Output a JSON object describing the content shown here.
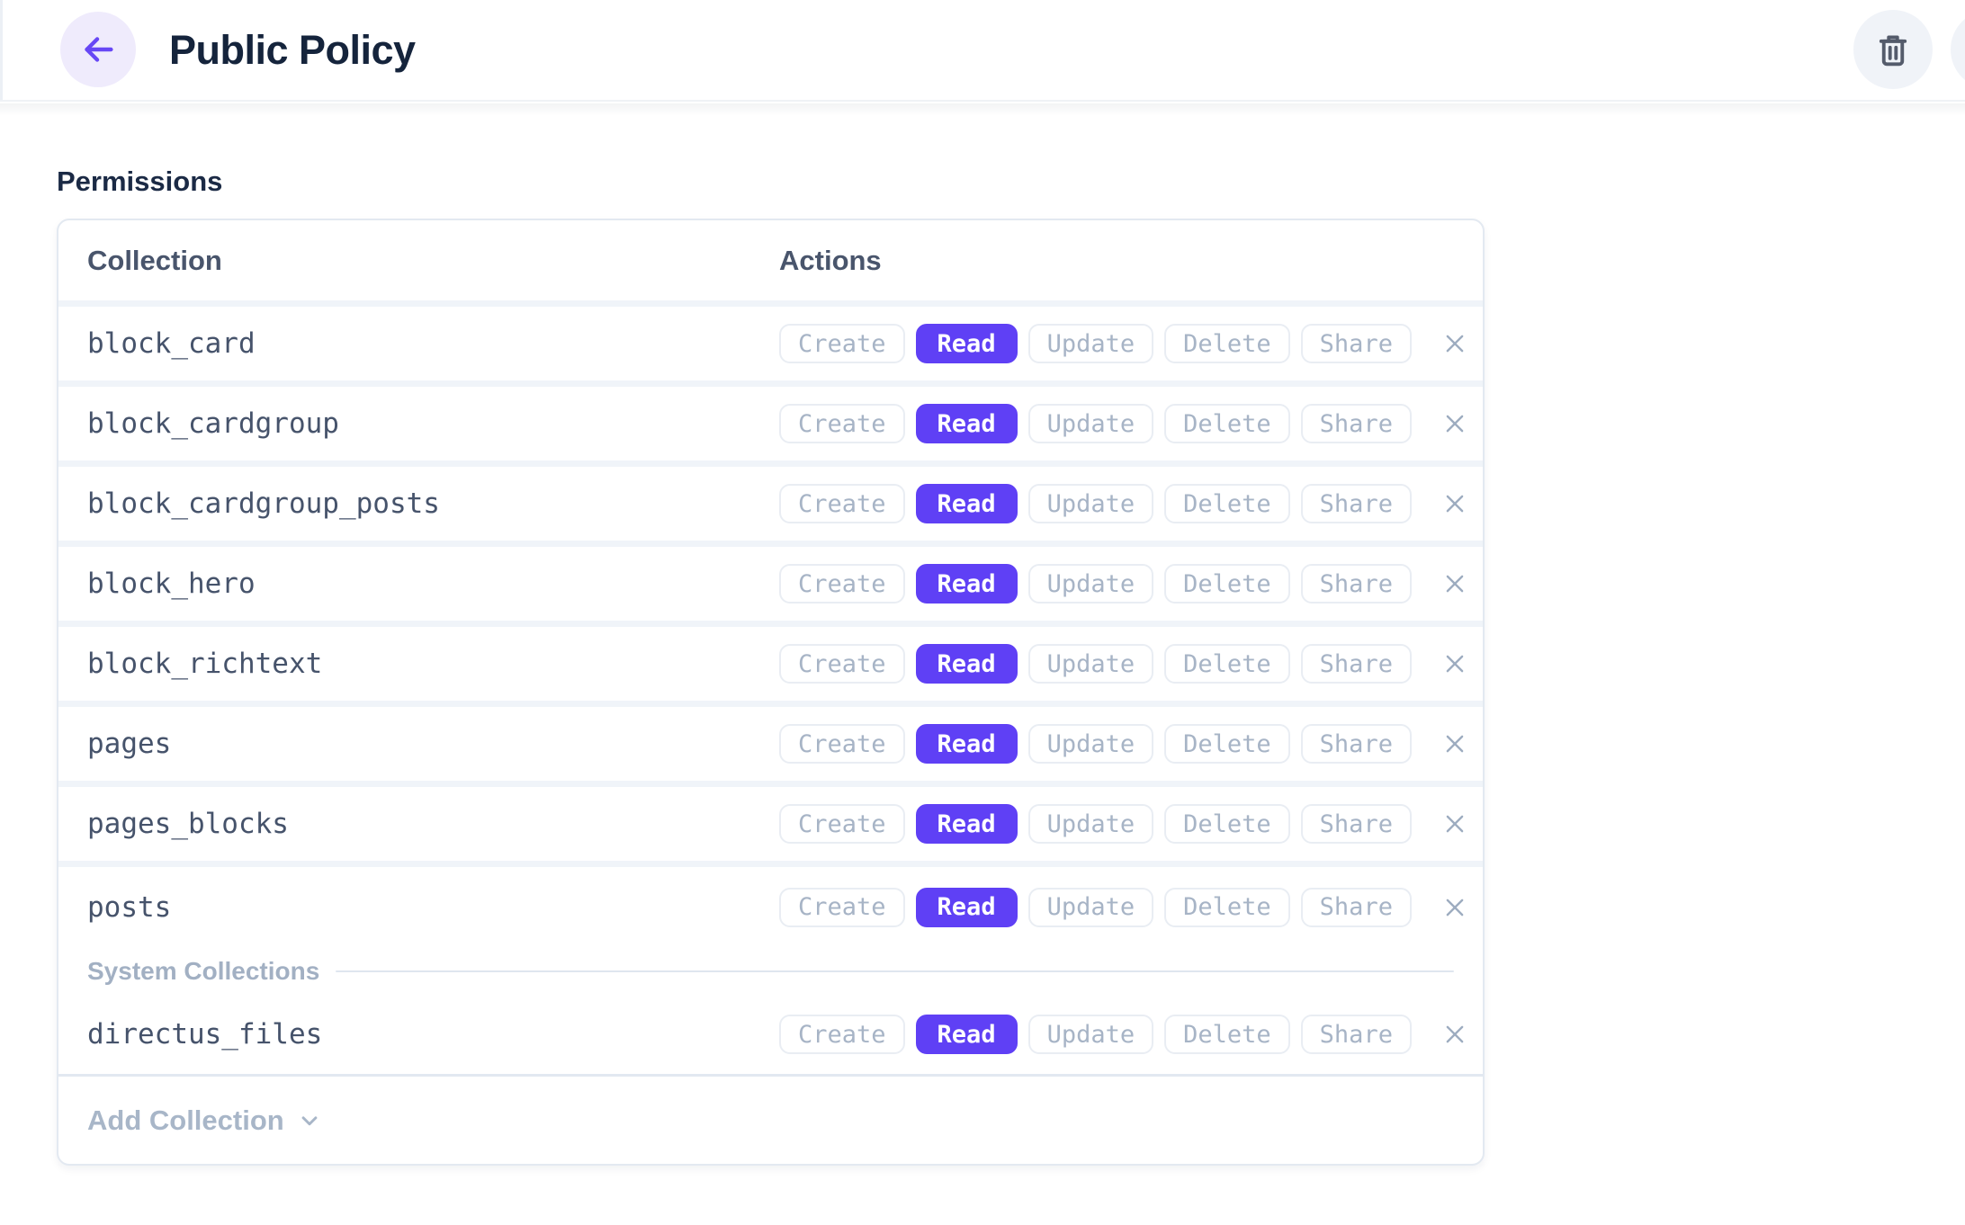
{
  "header": {
    "title": "Public Policy",
    "back_icon": "arrow-left-icon",
    "delete_icon": "trash-icon",
    "partial_icon": "partial-circle-button"
  },
  "permissions": {
    "heading": "Permissions",
    "columns": [
      "Collection",
      "Actions"
    ],
    "actions": [
      {
        "label": "Create",
        "active": false
      },
      {
        "label": "Read",
        "active": true
      },
      {
        "label": "Update",
        "active": false
      },
      {
        "label": "Delete",
        "active": false
      },
      {
        "label": "Share",
        "active": false
      }
    ],
    "rows": [
      "block_card",
      "block_cardgroup",
      "block_cardgroup_posts",
      "block_hero",
      "block_richtext",
      "pages",
      "pages_blocks",
      "posts"
    ],
    "system_divider": "System Collections",
    "system_rows": [
      "directus_files"
    ],
    "remove_icon": "close-icon",
    "footer": {
      "add_collection_label": "Add Collection",
      "dropdown_icon": "chevron-down-icon"
    }
  },
  "colors": {
    "accent": "#5F40F5",
    "accent_soft": "#EFEBFC",
    "title_text": "#15243C",
    "muted_text": "#A7B4C6",
    "mono_text": "#46536B",
    "card_border": "#E3E9F1",
    "separator": "#F0F4F9",
    "icon_circle": "#F0F3F8"
  }
}
